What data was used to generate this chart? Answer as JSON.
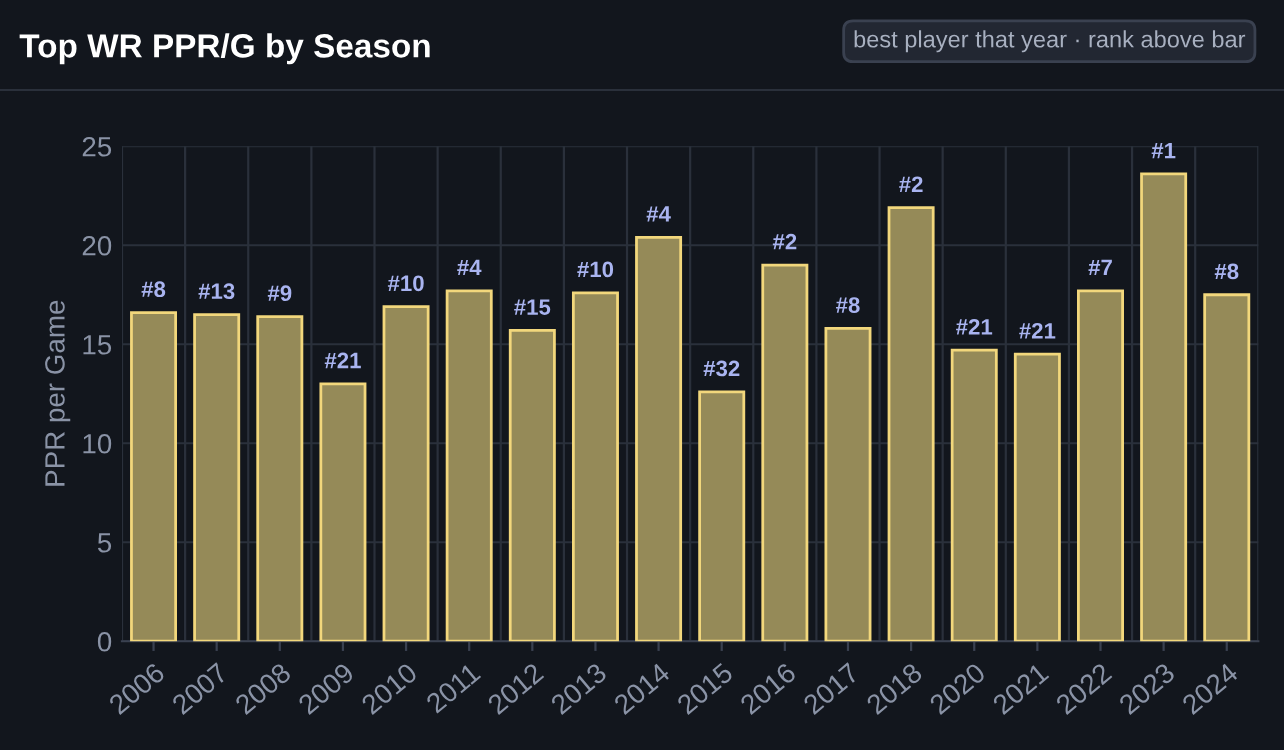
{
  "chart_data": {
    "type": "bar",
    "title": "Top WR PPR/G by Season",
    "subtitle": "best player that year · rank above bar",
    "ylabel": "PPR per Game",
    "categories": [
      "2006",
      "2007",
      "2008",
      "2009",
      "2010",
      "2011",
      "2012",
      "2013",
      "2014",
      "2015",
      "2016",
      "2017",
      "2018",
      "2020",
      "2021",
      "2022",
      "2023",
      "2024"
    ],
    "values": [
      16.6,
      16.5,
      16.4,
      13.0,
      16.9,
      17.7,
      15.7,
      17.6,
      20.4,
      12.6,
      19.0,
      15.8,
      21.9,
      14.7,
      14.5,
      17.7,
      23.6,
      17.5
    ],
    "annotations": [
      {
        "text": "#8",
        "x": "2006",
        "y": 16.6
      },
      {
        "text": "#13",
        "x": "2007",
        "y": 16.5
      },
      {
        "text": "#9",
        "x": "2008",
        "y": 16.4
      },
      {
        "text": "#21",
        "x": "2009",
        "y": 13.0
      },
      {
        "text": "#10",
        "x": "2010",
        "y": 16.9
      },
      {
        "text": "#4",
        "x": "2011",
        "y": 17.7
      },
      {
        "text": "#15",
        "x": "2012",
        "y": 15.7
      },
      {
        "text": "#10",
        "x": "2013",
        "y": 17.6
      },
      {
        "text": "#4",
        "x": "2014",
        "y": 20.4
      },
      {
        "text": "#32",
        "x": "2015",
        "y": 12.6
      },
      {
        "text": "#2",
        "x": "2016",
        "y": 19.0
      },
      {
        "text": "#8",
        "x": "2017",
        "y": 15.8
      },
      {
        "text": "#2",
        "x": "2018",
        "y": 21.9
      },
      {
        "text": "#21",
        "x": "2020",
        "y": 14.7
      },
      {
        "text": "#21",
        "x": "2021",
        "y": 14.5
      },
      {
        "text": "#7",
        "x": "2022",
        "y": 17.7
      },
      {
        "text": "#1",
        "x": "2023",
        "y": 23.6
      },
      {
        "text": "#8",
        "x": "2024",
        "y": 17.5
      }
    ],
    "color": "#958a58",
    "ylim": [
      0,
      25
    ],
    "yticks": [
      0,
      5,
      10,
      15,
      20,
      25
    ],
    "grid": true
  }
}
